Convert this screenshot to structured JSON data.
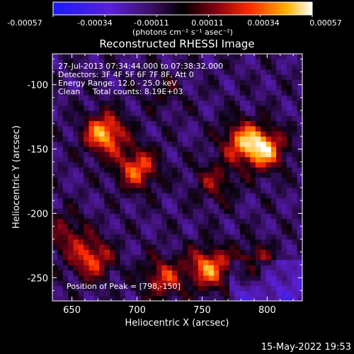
{
  "colorbar": {
    "tick_labels": [
      "-0.00057",
      "-0.00034",
      "-0.00011",
      "0.00011",
      "0.00034",
      "0.00057"
    ],
    "unit_label": "(photons cm⁻² s⁻¹ asec⁻²)",
    "range": [
      -0.00057,
      0.00057
    ]
  },
  "chart_data": {
    "type": "heatmap",
    "title": "Reconstructed RHESSI Image",
    "xlabel": "Heliocentric X (arcsec)",
    "ylabel": "Heliocentric Y (arcsec)",
    "xlim": [
      635,
      827
    ],
    "ylim": [
      -268,
      -76
    ],
    "x_ticks": [
      650,
      700,
      750,
      800
    ],
    "y_ticks": [
      -100,
      -150,
      -200,
      -250
    ],
    "peak": [
      798,
      -150
    ],
    "hotspots": [
      {
        "x": 675,
        "y": -138,
        "value": 0.00057
      },
      {
        "x": 797,
        "y": -150,
        "value": 0.00057
      },
      {
        "x": 755,
        "y": -242,
        "value": 0.0005
      },
      {
        "x": 700,
        "y": -165,
        "value": 0.00045
      },
      {
        "x": 780,
        "y": -143,
        "value": 0.0004
      },
      {
        "x": 665,
        "y": -235,
        "value": 0.00042
      },
      {
        "x": 720,
        "y": -250,
        "value": 0.00036
      },
      {
        "x": 790,
        "y": -240,
        "value": 0.0003
      },
      {
        "x": 645,
        "y": -215,
        "value": 0.00025
      },
      {
        "x": 760,
        "y": -175,
        "value": 0.00024
      },
      {
        "x": 720,
        "y": -105,
        "value": 0.00012
      }
    ],
    "annotations": [
      "27-Jul-2013 07:34:44.000 to 07:38:32.000",
      "Detectors: 3F 4F 5F 6F 7F 8F, Att 0",
      "Energy Range: 12.0 - 25.0 keV",
      "Clean     Total counts: 8.19E+03"
    ],
    "peak_label": "Position of Peak = [798,-150]"
  },
  "footer": {
    "timestamp": "15-May-2022 19:53"
  }
}
